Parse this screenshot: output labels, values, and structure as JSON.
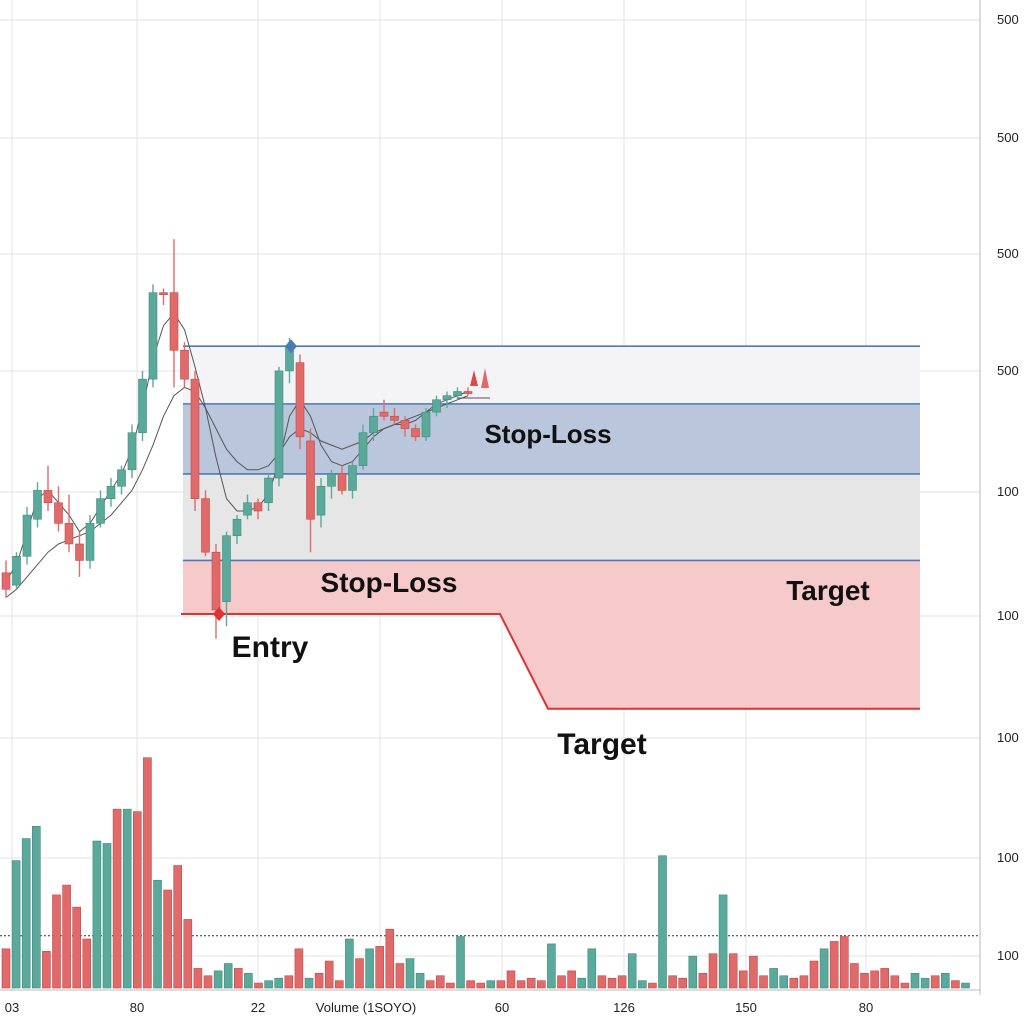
{
  "chart_data": {
    "type": "candlestick",
    "y_axis": {
      "tick_labels": [
        "500",
        "500",
        "500",
        "500",
        "100",
        "100",
        "100",
        "100",
        "100"
      ]
    },
    "x_axis": {
      "tick_labels": [
        "03",
        "80",
        "22",
        "Volume (1SOYO)",
        "60",
        "126",
        "150",
        "80"
      ]
    },
    "colors": {
      "up": "#5aa99b",
      "down": "#e06a6a",
      "band_grey": "#e6e6e6",
      "band_blue": "#bac6dc",
      "band_red": "#f6caca",
      "level_line": "#4a7ab8",
      "entry_line": "#dd3333"
    },
    "zones": {
      "stop_loss_upper": "Stop-Loss",
      "stop_loss_lower": "Stop-Loss",
      "entry": "Entry",
      "target_right": "Target",
      "target_lower": "Target"
    },
    "candles": [
      {
        "o": 20,
        "h": 26,
        "l": 8,
        "c": 12
      },
      {
        "o": 14,
        "h": 30,
        "l": 12,
        "c": 28
      },
      {
        "o": 28,
        "h": 52,
        "l": 24,
        "c": 48
      },
      {
        "o": 46,
        "h": 64,
        "l": 42,
        "c": 60
      },
      {
        "o": 60,
        "h": 72,
        "l": 50,
        "c": 54
      },
      {
        "o": 54,
        "h": 62,
        "l": 40,
        "c": 44
      },
      {
        "o": 44,
        "h": 58,
        "l": 30,
        "c": 34
      },
      {
        "o": 34,
        "h": 40,
        "l": 18,
        "c": 26
      },
      {
        "o": 26,
        "h": 48,
        "l": 22,
        "c": 44
      },
      {
        "o": 44,
        "h": 60,
        "l": 42,
        "c": 56
      },
      {
        "o": 56,
        "h": 66,
        "l": 52,
        "c": 62
      },
      {
        "o": 62,
        "h": 72,
        "l": 58,
        "c": 70
      },
      {
        "o": 70,
        "h": 92,
        "l": 66,
        "c": 88
      },
      {
        "o": 88,
        "h": 118,
        "l": 84,
        "c": 114
      },
      {
        "o": 114,
        "h": 160,
        "l": 110,
        "c": 156
      },
      {
        "o": 156,
        "h": 158,
        "l": 150,
        "c": 155
      },
      {
        "o": 156,
        "h": 182,
        "l": 110,
        "c": 128
      },
      {
        "o": 128,
        "h": 132,
        "l": 110,
        "c": 114
      },
      {
        "o": 114,
        "h": 118,
        "l": 50,
        "c": 56
      },
      {
        "o": 56,
        "h": 60,
        "l": 28,
        "c": 30
      },
      {
        "o": 30,
        "h": 34,
        "l": -12,
        "c": 2
      },
      {
        "o": 6,
        "h": 40,
        "l": -6,
        "c": 38
      },
      {
        "o": 38,
        "h": 48,
        "l": 34,
        "c": 46
      },
      {
        "o": 48,
        "h": 58,
        "l": 46,
        "c": 54
      },
      {
        "o": 54,
        "h": 56,
        "l": 46,
        "c": 50
      },
      {
        "o": 54,
        "h": 68,
        "l": 50,
        "c": 66
      },
      {
        "o": 66,
        "h": 120,
        "l": 62,
        "c": 118
      },
      {
        "o": 118,
        "h": 134,
        "l": 112,
        "c": 130
      },
      {
        "o": 122,
        "h": 126,
        "l": 80,
        "c": 86
      },
      {
        "o": 84,
        "h": 90,
        "l": 30,
        "c": 46
      },
      {
        "o": 48,
        "h": 66,
        "l": 42,
        "c": 62
      },
      {
        "o": 62,
        "h": 70,
        "l": 56,
        "c": 68
      },
      {
        "o": 68,
        "h": 72,
        "l": 58,
        "c": 60
      },
      {
        "o": 60,
        "h": 74,
        "l": 56,
        "c": 72
      },
      {
        "o": 72,
        "h": 92,
        "l": 70,
        "c": 88
      },
      {
        "o": 88,
        "h": 100,
        "l": 84,
        "c": 96
      },
      {
        "o": 98,
        "h": 104,
        "l": 94,
        "c": 96
      },
      {
        "o": 96,
        "h": 100,
        "l": 92,
        "c": 94
      },
      {
        "o": 94,
        "h": 96,
        "l": 86,
        "c": 90
      },
      {
        "o": 90,
        "h": 92,
        "l": 84,
        "c": 86
      },
      {
        "o": 86,
        "h": 100,
        "l": 84,
        "c": 98
      },
      {
        "o": 98,
        "h": 106,
        "l": 96,
        "c": 104
      },
      {
        "o": 104,
        "h": 108,
        "l": 100,
        "c": 106
      },
      {
        "o": 106,
        "h": 110,
        "l": 104,
        "c": 108
      },
      {
        "o": 108,
        "h": 110,
        "l": 106,
        "c": 107
      }
    ],
    "ma_fast": [
      16,
      24,
      40,
      56,
      60,
      54,
      48,
      40,
      44,
      52,
      60,
      68,
      80,
      100,
      124,
      140,
      146,
      138,
      120,
      100,
      76,
      56,
      50,
      50,
      52,
      58,
      74,
      96,
      104,
      96,
      82,
      74,
      72,
      74,
      80,
      86,
      90,
      92,
      92,
      94,
      98,
      102,
      104,
      106,
      108
    ],
    "ma_slow": [
      8,
      12,
      18,
      24,
      30,
      34,
      36,
      38,
      40,
      44,
      48,
      54,
      60,
      70,
      82,
      96,
      106,
      110,
      108,
      100,
      90,
      80,
      74,
      70,
      70,
      72,
      78,
      86,
      90,
      88,
      84,
      82,
      80,
      82,
      84,
      88,
      90,
      92,
      94,
      96,
      98,
      100,
      102,
      104,
      106
    ],
    "levels": {
      "top": 130,
      "upper_mid": 102,
      "mid": 68,
      "stop_bottom": 26,
      "entry": 0,
      "target_low": -46
    },
    "volume": [
      16,
      52,
      61,
      66,
      15,
      38,
      42,
      33,
      20,
      60,
      59,
      73,
      73,
      72,
      94,
      44,
      40,
      50,
      28,
      8,
      5,
      7,
      10,
      8,
      6,
      2,
      3,
      4,
      5,
      16,
      4,
      6,
      11,
      3,
      20,
      12,
      16,
      17,
      24,
      10,
      12,
      6,
      3,
      5,
      2,
      21,
      3,
      2,
      3,
      3,
      7,
      3,
      4,
      3,
      18,
      5,
      7,
      4,
      16,
      5,
      4,
      5,
      14,
      3,
      2,
      54,
      5,
      4,
      13,
      6,
      14,
      38,
      14,
      7,
      13,
      5,
      8,
      5,
      4,
      5,
      11,
      16,
      19,
      21,
      10,
      6,
      7,
      8,
      5,
      2,
      6,
      4,
      5,
      6,
      3,
      2
    ],
    "volume_up": [
      0,
      1,
      1,
      1,
      0,
      0,
      0,
      0,
      0,
      1,
      1,
      0,
      1,
      0,
      0,
      1,
      0,
      0,
      0,
      0,
      0,
      1,
      1,
      0,
      1,
      0,
      1,
      1,
      0,
      0,
      1,
      0,
      0,
      0,
      1,
      0,
      1,
      0,
      0,
      0,
      1,
      1,
      0,
      0,
      0,
      1,
      0,
      0,
      1,
      0,
      0,
      0,
      0,
      0,
      1,
      0,
      0,
      1,
      1,
      0,
      0,
      0,
      1,
      1,
      0,
      1,
      0,
      0,
      1,
      0,
      0,
      1,
      0,
      0,
      0,
      0,
      1,
      1,
      0,
      0,
      0,
      1,
      0,
      0,
      0,
      0,
      0,
      0,
      0,
      0,
      1,
      1,
      0,
      1,
      0,
      1
    ],
    "volume_reference": 22
  }
}
